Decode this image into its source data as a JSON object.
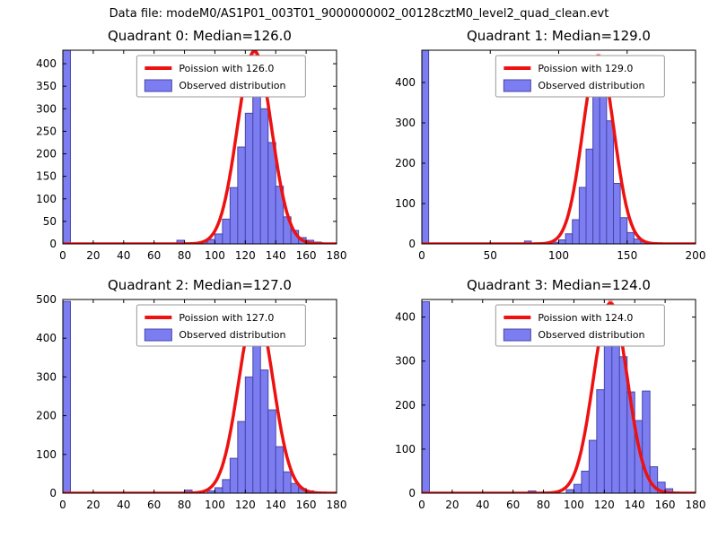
{
  "figure": {
    "title": "Data file: modeM0/AS1P01_003T01_9000000002_00128cztM0_level2_quad_clean.evt"
  },
  "colors": {
    "bar_fill": "#7d7df2",
    "bar_edge": "#4646a8",
    "curve": "#ee1111",
    "median_line": "#ffaaaa",
    "axis": "#000000",
    "legend_border": "#999999",
    "background": "#ffffff"
  },
  "chart_data": [
    {
      "type": "histogram",
      "title": "Quadrant 0: Median=126.0",
      "median": 126.0,
      "legend": {
        "curve": "Poission with 126.0",
        "hist": "Observed distribution"
      },
      "xlim": [
        0,
        180
      ],
      "ylim": [
        0,
        430
      ],
      "xticks": [
        0,
        20,
        40,
        60,
        80,
        100,
        120,
        140,
        160,
        180
      ],
      "yticks": [
        0,
        50,
        100,
        150,
        200,
        250,
        300,
        350,
        400
      ],
      "bin_width": 5,
      "bars": [
        [
          0,
          430
        ],
        [
          75,
          8
        ],
        [
          90,
          4
        ],
        [
          95,
          10
        ],
        [
          100,
          22
        ],
        [
          105,
          55
        ],
        [
          110,
          125
        ],
        [
          115,
          215
        ],
        [
          120,
          290
        ],
        [
          125,
          335
        ],
        [
          130,
          300
        ],
        [
          135,
          225
        ],
        [
          140,
          128
        ],
        [
          145,
          60
        ],
        [
          150,
          30
        ],
        [
          155,
          14
        ],
        [
          160,
          8
        ],
        [
          165,
          4
        ]
      ],
      "curve": {
        "type": "poisson-fit",
        "mu": 126.0,
        "sigma": 11.2,
        "peak": 428
      }
    },
    {
      "type": "histogram",
      "title": "Quadrant 1: Median=129.0",
      "median": 129.0,
      "legend": {
        "curve": "Poission with 129.0",
        "hist": "Observed distribution"
      },
      "xlim": [
        0,
        200
      ],
      "ylim": [
        0,
        480
      ],
      "xticks": [
        0,
        50,
        100,
        150,
        200
      ],
      "yticks": [
        0,
        100,
        200,
        300,
        400
      ],
      "bin_width": 5,
      "bars": [
        [
          0,
          480
        ],
        [
          75,
          7
        ],
        [
          95,
          4
        ],
        [
          100,
          10
        ],
        [
          105,
          25
        ],
        [
          110,
          60
        ],
        [
          115,
          140
        ],
        [
          120,
          235
        ],
        [
          125,
          385
        ],
        [
          130,
          455
        ],
        [
          135,
          305
        ],
        [
          140,
          150
        ],
        [
          145,
          65
        ],
        [
          150,
          28
        ],
        [
          155,
          12
        ],
        [
          160,
          6
        ]
      ],
      "curve": {
        "type": "poisson-fit",
        "mu": 129.0,
        "sigma": 11.4,
        "peak": 465
      }
    },
    {
      "type": "histogram",
      "title": "Quadrant 2: Median=127.0",
      "median": 127.0,
      "legend": {
        "curve": "Poission with 127.0",
        "hist": "Observed distribution"
      },
      "xlim": [
        0,
        180
      ],
      "ylim": [
        0,
        500
      ],
      "xticks": [
        0,
        20,
        40,
        60,
        80,
        100,
        120,
        140,
        160,
        180
      ],
      "yticks": [
        0,
        100,
        200,
        300,
        400,
        500
      ],
      "bin_width": 5,
      "bars": [
        [
          0,
          495
        ],
        [
          80,
          8
        ],
        [
          95,
          6
        ],
        [
          100,
          14
        ],
        [
          105,
          35
        ],
        [
          110,
          90
        ],
        [
          115,
          185
        ],
        [
          120,
          300
        ],
        [
          125,
          465
        ],
        [
          130,
          318
        ],
        [
          135,
          215
        ],
        [
          140,
          120
        ],
        [
          145,
          55
        ],
        [
          150,
          25
        ],
        [
          155,
          12
        ],
        [
          160,
          6
        ]
      ],
      "curve": {
        "type": "poisson-fit",
        "mu": 127.0,
        "sigma": 11.3,
        "peak": 478
      }
    },
    {
      "type": "histogram",
      "title": "Quadrant 3: Median=124.0",
      "median": 124.0,
      "legend": {
        "curve": "Poission with 124.0",
        "hist": "Observed distribution"
      },
      "xlim": [
        0,
        180
      ],
      "ylim": [
        0,
        440
      ],
      "xticks": [
        0,
        20,
        40,
        60,
        80,
        100,
        120,
        140,
        160,
        180
      ],
      "yticks": [
        0,
        100,
        200,
        300,
        400
      ],
      "bin_width": 5,
      "bars": [
        [
          0,
          435
        ],
        [
          70,
          5
        ],
        [
          95,
          8
        ],
        [
          100,
          20
        ],
        [
          105,
          50
        ],
        [
          110,
          120
        ],
        [
          115,
          235
        ],
        [
          120,
          380
        ],
        [
          125,
          345
        ],
        [
          130,
          310
        ],
        [
          135,
          230
        ],
        [
          140,
          165
        ],
        [
          145,
          232
        ],
        [
          150,
          60
        ],
        [
          155,
          25
        ],
        [
          160,
          10
        ]
      ],
      "curve": {
        "type": "poisson-fit",
        "mu": 124.0,
        "sigma": 11.1,
        "peak": 432
      }
    }
  ]
}
